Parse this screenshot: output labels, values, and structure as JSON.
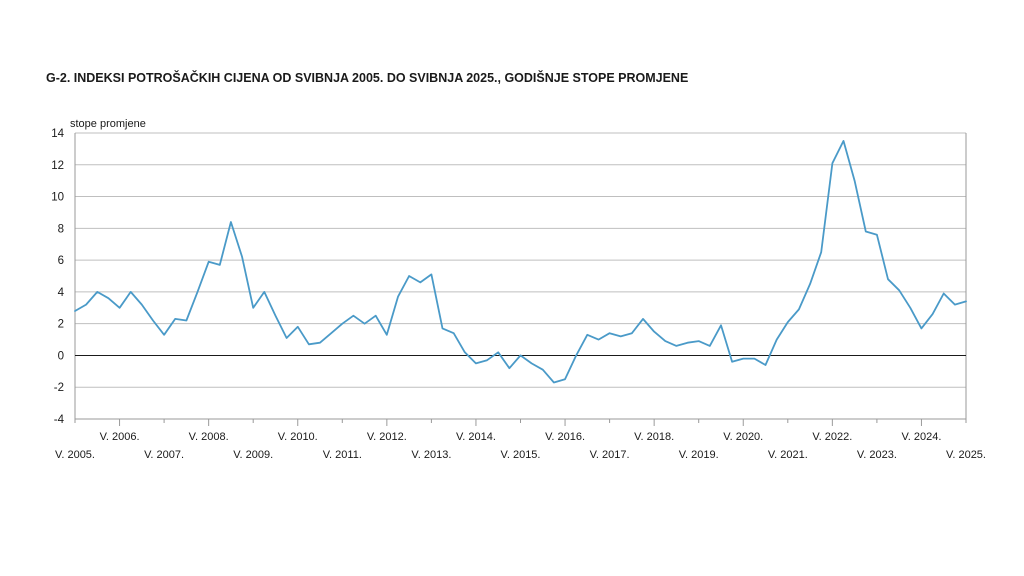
{
  "chart_data": {
    "type": "line",
    "title": "G-2.  INDEKSI POTROŠAČKIH CIJENA OD SVIBNJA 2005. DO SVIBNJA 2025., GODIŠNJE STOPE PROMJENE",
    "ylabel": "stope promjene",
    "xlabel": "",
    "ylim": [
      -4,
      14
    ],
    "yticks": [
      -4,
      -2,
      0,
      2,
      4,
      6,
      8,
      10,
      12,
      14
    ],
    "x_range": [
      "2005-05",
      "2025-05"
    ],
    "xticks_upper": [
      "V. 2006.",
      "V. 2008.",
      "V. 2010.",
      "V. 2012.",
      "V. 2014.",
      "V. 2016.",
      "V. 2018.",
      "V. 2020.",
      "V. 2022.",
      "V. 2024."
    ],
    "xticks_lower": [
      "V. 2005.",
      "V. 2007.",
      "V. 2009.",
      "V. 2011.",
      "V. 2013.",
      "V. 2015.",
      "V. 2017.",
      "V. 2019.",
      "V. 2021.",
      "V. 2023.",
      "V. 2025."
    ],
    "grid": true,
    "color": "#4a9ac8",
    "x": [
      "2005-05",
      "2005-08",
      "2005-11",
      "2006-02",
      "2006-05",
      "2006-08",
      "2006-11",
      "2007-02",
      "2007-05",
      "2007-08",
      "2007-11",
      "2008-02",
      "2008-05",
      "2008-08",
      "2008-11",
      "2009-02",
      "2009-05",
      "2009-08",
      "2009-11",
      "2010-02",
      "2010-05",
      "2010-08",
      "2010-11",
      "2011-02",
      "2011-05",
      "2011-08",
      "2011-11",
      "2012-02",
      "2012-05",
      "2012-08",
      "2012-11",
      "2013-02",
      "2013-05",
      "2013-08",
      "2013-11",
      "2014-02",
      "2014-05",
      "2014-08",
      "2014-11",
      "2015-02",
      "2015-05",
      "2015-08",
      "2015-11",
      "2016-02",
      "2016-05",
      "2016-08",
      "2016-11",
      "2017-02",
      "2017-05",
      "2017-08",
      "2017-11",
      "2018-02",
      "2018-05",
      "2018-08",
      "2018-11",
      "2019-02",
      "2019-05",
      "2019-08",
      "2019-11",
      "2020-02",
      "2020-05",
      "2020-08",
      "2020-11",
      "2021-02",
      "2021-05",
      "2021-08",
      "2021-11",
      "2022-02",
      "2022-05",
      "2022-08",
      "2022-11",
      "2023-02",
      "2023-05",
      "2023-08",
      "2023-11",
      "2024-02",
      "2024-05",
      "2024-08",
      "2024-11",
      "2025-02",
      "2025-05"
    ],
    "values": [
      2.8,
      3.2,
      4.0,
      3.6,
      3.0,
      4.0,
      3.2,
      2.2,
      1.3,
      2.3,
      2.2,
      4.0,
      5.9,
      5.7,
      8.4,
      6.2,
      3.0,
      4.0,
      2.5,
      1.1,
      1.8,
      0.7,
      0.8,
      1.4,
      2.0,
      2.5,
      2.0,
      2.5,
      1.3,
      3.7,
      5.0,
      4.6,
      5.1,
      1.7,
      1.4,
      0.2,
      -0.5,
      -0.3,
      0.2,
      -0.8,
      0.0,
      -0.5,
      -0.9,
      -1.7,
      -1.5,
      0.0,
      1.3,
      1.0,
      1.4,
      1.2,
      1.4,
      2.3,
      1.5,
      0.9,
      0.6,
      0.8,
      0.9,
      0.6,
      1.9,
      -0.4,
      -0.2,
      -0.2,
      -0.6,
      1.0,
      2.1,
      2.9,
      4.5,
      6.5,
      12.1,
      13.5,
      11.0,
      7.8,
      7.6,
      4.8,
      4.1,
      3.0,
      1.7,
      2.6,
      3.9,
      3.2,
      3.4
    ]
  }
}
